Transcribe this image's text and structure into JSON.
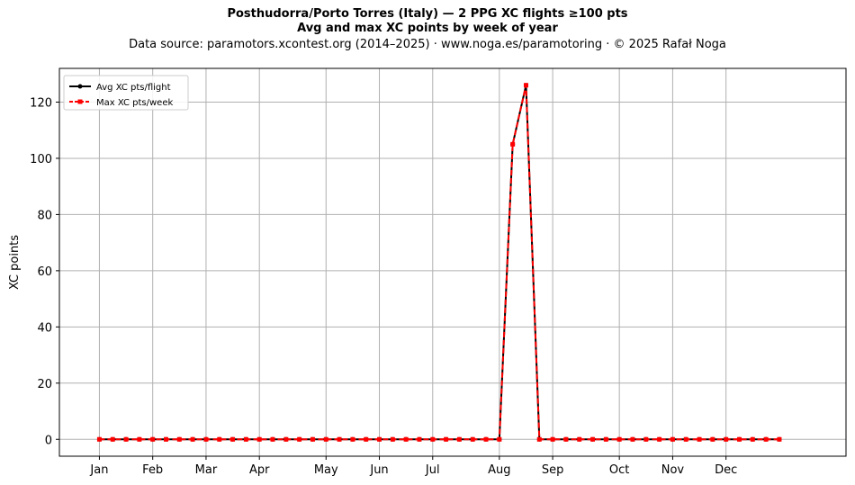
{
  "chart_data": {
    "type": "line",
    "title": "Posthudorra/Porto Torres (Italy)  —  2 PPG XC flights ≥100 pts",
    "subtitle": "Avg and max XC points by week of year",
    "source": "Data source: paramotors.xcontest.org (2014–2025)  ·  www.noga.es/paramotoring  ·  © 2025 Rafał Noga",
    "xlabel": "",
    "ylabel": "XC points",
    "x_unit": "week of year",
    "xlim": [
      -2,
      57
    ],
    "ylim": [
      -6,
      132
    ],
    "x_ticks": [
      {
        "week": 1,
        "label": "Jan"
      },
      {
        "week": 5,
        "label": "Feb"
      },
      {
        "week": 9,
        "label": "Mar"
      },
      {
        "week": 13,
        "label": "Apr"
      },
      {
        "week": 18,
        "label": "May"
      },
      {
        "week": 22,
        "label": "Jun"
      },
      {
        "week": 26,
        "label": "Jul"
      },
      {
        "week": 31,
        "label": "Aug"
      },
      {
        "week": 35,
        "label": "Sep"
      },
      {
        "week": 40,
        "label": "Oct"
      },
      {
        "week": 44,
        "label": "Nov"
      },
      {
        "week": 48,
        "label": "Dec"
      }
    ],
    "y_ticks": [
      0,
      20,
      40,
      60,
      80,
      100,
      120
    ],
    "grid": true,
    "legend_position": "top-left",
    "x": [
      1,
      2,
      3,
      4,
      5,
      6,
      7,
      8,
      9,
      10,
      11,
      12,
      13,
      14,
      15,
      16,
      17,
      18,
      19,
      20,
      21,
      22,
      23,
      24,
      25,
      26,
      27,
      28,
      29,
      30,
      31,
      32,
      33,
      34,
      35,
      36,
      37,
      38,
      39,
      40,
      41,
      42,
      43,
      44,
      45,
      46,
      47,
      48,
      49,
      50,
      51,
      52
    ],
    "series": [
      {
        "name": "Avg XC pts/flight",
        "color": "#000000",
        "style": "solid",
        "marker": "circle",
        "values": [
          0,
          0,
          0,
          0,
          0,
          0,
          0,
          0,
          0,
          0,
          0,
          0,
          0,
          0,
          0,
          0,
          0,
          0,
          0,
          0,
          0,
          0,
          0,
          0,
          0,
          0,
          0,
          0,
          0,
          0,
          0,
          105,
          126,
          0,
          0,
          0,
          0,
          0,
          0,
          0,
          0,
          0,
          0,
          0,
          0,
          0,
          0,
          0,
          0,
          0,
          0,
          0
        ]
      },
      {
        "name": "Max XC pts/week",
        "color": "#ff0000",
        "style": "dashed",
        "marker": "square",
        "values": [
          0,
          0,
          0,
          0,
          0,
          0,
          0,
          0,
          0,
          0,
          0,
          0,
          0,
          0,
          0,
          0,
          0,
          0,
          0,
          0,
          0,
          0,
          0,
          0,
          0,
          0,
          0,
          0,
          0,
          0,
          0,
          105,
          126,
          0,
          0,
          0,
          0,
          0,
          0,
          0,
          0,
          0,
          0,
          0,
          0,
          0,
          0,
          0,
          0,
          0,
          0,
          0
        ]
      }
    ]
  }
}
